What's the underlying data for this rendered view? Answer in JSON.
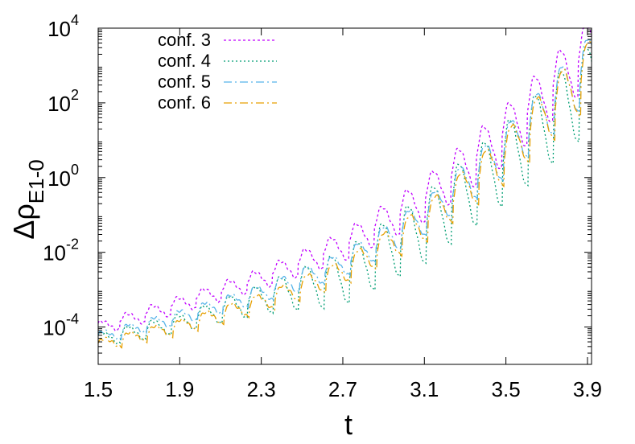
{
  "chart_data": {
    "type": "line",
    "xlabel": "t",
    "ylabel": {
      "base": "Δρ",
      "subscript": "E",
      "sub_subscript": "1-0"
    },
    "xlim": [
      1.5,
      3.92
    ],
    "ylim_log10": [
      -5.0,
      4.0
    ],
    "yscale": "log",
    "grid": false,
    "legend_position": "top-left",
    "x_ticks": [
      "1.5",
      "1.9",
      "2.3",
      "2.7",
      "3.1",
      "3.5",
      "3.9"
    ],
    "y_ticks": [
      {
        "base": "10",
        "exp": "4"
      },
      {
        "base": "10",
        "exp": "2"
      },
      {
        "base": "10",
        "exp": "0"
      },
      {
        "base": "10",
        "exp": "-2"
      },
      {
        "base": "10",
        "exp": "-4"
      }
    ],
    "oscillation_period": 0.125,
    "series": [
      {
        "name": "conf. 3",
        "color": "#c000ff",
        "dash": "3,3",
        "x": [
          1.5,
          1.9,
          2.3,
          2.7,
          3.1,
          3.5,
          3.9
        ],
        "log10_envelope": [
          -4.0,
          -3.35,
          -2.65,
          -1.75,
          -0.45,
          1.35,
          3.55
        ],
        "oscillation_amplitude": [
          0.18,
          0.22,
          0.28,
          0.4,
          0.6,
          0.8,
          0.9
        ]
      },
      {
        "name": "conf. 4",
        "color": "#009e73",
        "dash": "2,3",
        "x": [
          1.5,
          1.9,
          2.3,
          2.7,
          3.1,
          3.5,
          3.9
        ],
        "log10_envelope": [
          -4.3,
          -3.85,
          -3.15,
          -2.5,
          -1.1,
          0.7,
          2.7
        ],
        "oscillation_amplitude": [
          0.18,
          0.25,
          0.4,
          0.75,
          0.95,
          1.1,
          1.2
        ]
      },
      {
        "name": "conf. 5",
        "color": "#56b4e9",
        "dash": "10,4,2,4",
        "x": [
          1.5,
          1.9,
          2.3,
          2.7,
          3.1,
          3.5,
          3.9
        ],
        "log10_envelope": [
          -4.25,
          -3.7,
          -3.05,
          -2.25,
          -0.95,
          0.9,
          3.1
        ],
        "oscillation_amplitude": [
          0.15,
          0.2,
          0.25,
          0.35,
          0.5,
          0.7,
          0.9
        ]
      },
      {
        "name": "conf. 6",
        "color": "#e69f00",
        "dash": "10,4,2,4",
        "x": [
          1.5,
          1.9,
          2.3,
          2.7,
          3.1,
          3.5,
          3.9
        ],
        "log10_envelope": [
          -4.45,
          -3.95,
          -3.3,
          -2.45,
          -1.1,
          0.75,
          3.0
        ],
        "oscillation_amplitude": [
          0.15,
          0.2,
          0.25,
          0.35,
          0.5,
          0.7,
          0.9
        ]
      }
    ]
  }
}
